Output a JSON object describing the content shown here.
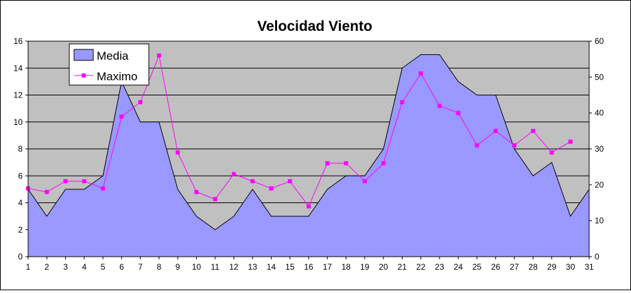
{
  "chart_data": {
    "type": "area",
    "title": "Velocidad Viento",
    "categories": [
      "1",
      "2",
      "3",
      "4",
      "5",
      "6",
      "7",
      "8",
      "9",
      "10",
      "11",
      "12",
      "13",
      "14",
      "15",
      "16",
      "17",
      "18",
      "19",
      "20",
      "21",
      "22",
      "23",
      "24",
      "25",
      "26",
      "27",
      "28",
      "29",
      "30",
      "31"
    ],
    "y_left": {
      "min": 0,
      "max": 16,
      "step": 2,
      "ticks": [
        "0",
        "2",
        "4",
        "6",
        "8",
        "10",
        "12",
        "14",
        "16"
      ]
    },
    "y_right": {
      "min": 0,
      "max": 60,
      "step": 10,
      "ticks": [
        "0",
        "10",
        "20",
        "30",
        "40",
        "50",
        "60"
      ]
    },
    "grid": true,
    "legend_position": "top-left",
    "series": [
      {
        "name": "Media",
        "kind": "area",
        "axis": "left",
        "color": "#9999ff",
        "values": [
          5,
          3,
          5,
          5,
          6,
          13,
          10,
          10,
          5,
          3,
          2,
          3,
          5,
          3,
          3,
          3,
          5,
          6,
          6,
          8,
          14,
          15,
          15,
          13,
          12,
          12,
          8,
          6,
          7,
          3,
          5
        ]
      },
      {
        "name": "Maximo",
        "kind": "line",
        "axis": "right",
        "color": "#ff00ff",
        "values": [
          19,
          18,
          21,
          21,
          19,
          39,
          43,
          56,
          29,
          18,
          16,
          23,
          21,
          19,
          21,
          14,
          26,
          26,
          21,
          26,
          43,
          51,
          42,
          40,
          31,
          35,
          31,
          35,
          29,
          32,
          null
        ]
      }
    ],
    "plot_background": "#c0c0c0"
  }
}
